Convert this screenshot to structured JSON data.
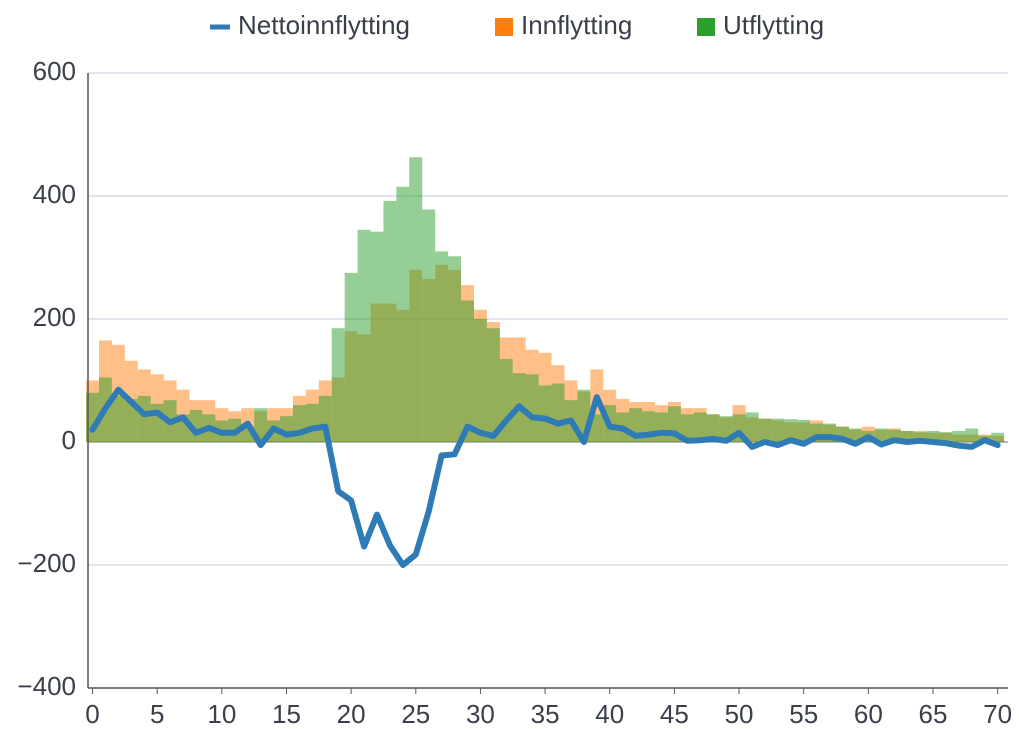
{
  "chart_data": {
    "type": "bar",
    "x": [
      0,
      1,
      2,
      3,
      4,
      5,
      6,
      7,
      8,
      9,
      10,
      11,
      12,
      13,
      14,
      15,
      16,
      17,
      18,
      19,
      20,
      21,
      22,
      23,
      24,
      25,
      26,
      27,
      28,
      29,
      30,
      31,
      32,
      33,
      34,
      35,
      36,
      37,
      38,
      39,
      40,
      41,
      42,
      43,
      44,
      45,
      46,
      47,
      48,
      49,
      50,
      51,
      52,
      53,
      54,
      55,
      56,
      57,
      58,
      59,
      60,
      61,
      62,
      63,
      64,
      65,
      66,
      67,
      68,
      69,
      70
    ],
    "series": [
      {
        "name": "Nettoinnflytting",
        "type": "line",
        "color": "#2f7bb6",
        "values": [
          20,
          55,
          85,
          65,
          45,
          48,
          32,
          40,
          15,
          23,
          15,
          15,
          30,
          -5,
          22,
          12,
          15,
          22,
          25,
          -80,
          -95,
          -170,
          -118,
          -168,
          -200,
          -183,
          -113,
          -22,
          -20,
          25,
          15,
          10,
          35,
          58,
          40,
          38,
          30,
          35,
          0,
          73,
          25,
          22,
          10,
          12,
          15,
          14,
          2,
          3,
          5,
          2,
          15,
          -8,
          0,
          -5,
          3,
          -3,
          8,
          8,
          5,
          -3,
          8,
          -4,
          3,
          0,
          2,
          0,
          -2,
          -6,
          -8,
          3,
          -5
        ]
      },
      {
        "name": "Innflytting",
        "type": "bar",
        "color": "#ff7f0e",
        "values": [
          100,
          165,
          158,
          132,
          118,
          110,
          100,
          85,
          68,
          68,
          55,
          50,
          55,
          50,
          55,
          55,
          75,
          85,
          100,
          105,
          180,
          175,
          225,
          225,
          215,
          280,
          265,
          288,
          280,
          255,
          215,
          195,
          170,
          170,
          150,
          145,
          125,
          100,
          82,
          118,
          85,
          70,
          65,
          65,
          60,
          65,
          55,
          55,
          45,
          40,
          60,
          40,
          38,
          35,
          32,
          32,
          35,
          28,
          25,
          20,
          25,
          20,
          22,
          18,
          18,
          15,
          15,
          12,
          12,
          12,
          10
        ]
      },
      {
        "name": "Utflytting",
        "type": "bar",
        "color": "#2ca02c",
        "values": [
          80,
          105,
          75,
          70,
          75,
          62,
          68,
          45,
          52,
          45,
          35,
          38,
          25,
          55,
          35,
          42,
          60,
          62,
          75,
          185,
          275,
          345,
          342,
          392,
          415,
          463,
          378,
          310,
          302,
          230,
          200,
          185,
          135,
          112,
          110,
          92,
          95,
          68,
          85,
          45,
          60,
          48,
          55,
          50,
          48,
          58,
          45,
          48,
          45,
          42,
          45,
          48,
          38,
          38,
          37,
          36,
          30,
          30,
          25,
          22,
          18,
          22,
          20,
          18,
          16,
          18,
          16,
          18,
          22,
          10,
          15
        ]
      }
    ],
    "xlim": [
      -0.35,
      70.8
    ],
    "xticks": [
      0,
      5,
      10,
      15,
      20,
      25,
      30,
      35,
      40,
      45,
      50,
      55,
      60,
      65,
      70
    ],
    "ylim": [
      -400,
      600
    ],
    "yticks": [
      {
        "value": -400,
        "label": "−400"
      },
      {
        "value": -200,
        "label": "−200"
      },
      0,
      200,
      400,
      600
    ],
    "grid": true,
    "legend": "top"
  }
}
